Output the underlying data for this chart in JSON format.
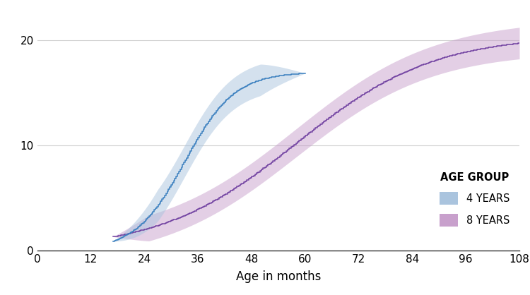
{
  "xlabel": "Age in months",
  "xlim": [
    0,
    108
  ],
  "ylim": [
    0,
    23
  ],
  "xticks": [
    0,
    12,
    24,
    36,
    48,
    60,
    72,
    84,
    96,
    108
  ],
  "yticks": [
    0,
    10,
    20
  ],
  "background_color": "#ffffff",
  "grid_color": "#d0d0d0",
  "age4_line_color": "#3a7fbf",
  "age4_fill_color": "#aac4de",
  "age8_line_color": "#7040a0",
  "age8_fill_color": "#c8a0cc",
  "legend_title": "AGE GROUP",
  "legend_labels": [
    "4 YEARS",
    "8 YEARS"
  ],
  "age4_L": 17.0,
  "age4_x0": 33.0,
  "age4_k": 0.18,
  "age4_xstart": 17,
  "age4_xend": 60,
  "age4_band": 1.5,
  "age8_L": 20.5,
  "age8_x0": 58.0,
  "age8_k": 0.065,
  "age8_xstart": 17,
  "age8_xend": 108,
  "age8_band_lo": 1.2,
  "age8_band_hi": 1.5
}
